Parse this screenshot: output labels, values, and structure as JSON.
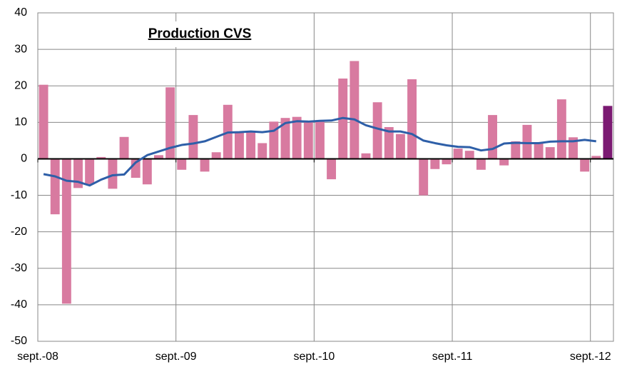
{
  "chart_data": {
    "type": "combo",
    "title": "Production CVS",
    "categories": [
      "sept.-08",
      null,
      null,
      null,
      null,
      null,
      null,
      null,
      null,
      null,
      null,
      null,
      "sept.-09",
      null,
      null,
      null,
      null,
      null,
      null,
      null,
      null,
      null,
      null,
      null,
      "sept.-10",
      null,
      null,
      null,
      null,
      null,
      null,
      null,
      null,
      null,
      null,
      null,
      "sept.-11",
      null,
      null,
      null,
      null,
      null,
      null,
      null,
      null,
      null,
      null,
      null,
      "sept.-12",
      null
    ],
    "series": [
      {
        "type": "bar",
        "color": "#d87aa0",
        "colors": [
          "#d87aa0",
          "#d87aa0",
          "#d87aa0",
          "#d87aa0",
          "#d87aa0",
          "#d87aa0",
          "#d87aa0",
          "#d87aa0",
          "#d87aa0",
          "#d87aa0",
          "#d87aa0",
          "#d87aa0",
          "#d87aa0",
          "#d87aa0",
          "#d87aa0",
          "#d87aa0",
          "#d87aa0",
          "#d87aa0",
          "#d87aa0",
          "#d87aa0",
          "#d87aa0",
          "#d87aa0",
          "#d87aa0",
          "#d87aa0",
          "#d87aa0",
          "#d87aa0",
          "#d87aa0",
          "#d87aa0",
          "#d87aa0",
          "#d87aa0",
          "#d87aa0",
          "#d87aa0",
          "#d87aa0",
          "#d87aa0",
          "#d87aa0",
          "#d87aa0",
          "#d87aa0",
          "#d87aa0",
          "#d87aa0",
          "#d87aa0",
          "#d87aa0",
          "#d87aa0",
          "#d87aa0",
          "#d87aa0",
          "#d87aa0",
          "#d87aa0",
          "#d87aa0",
          "#d87aa0",
          "#d87aa0",
          "#7b1a72"
        ],
        "values": [
          20.3,
          -15.2,
          -39.7,
          -8,
          -7,
          0.5,
          -8.2,
          6,
          -5.2,
          -7,
          1,
          19.6,
          -3,
          12,
          -3.5,
          1.8,
          14.8,
          7.2,
          7.3,
          4.3,
          10.2,
          11.2,
          11.5,
          10.3,
          10.2,
          -5.6,
          22,
          26.8,
          1.5,
          15.5,
          8.7,
          6.8,
          21.8,
          -10,
          -2.8,
          -1.5,
          2.8,
          2.2,
          -3,
          12,
          -1.8,
          4.8,
          9.3,
          4.5,
          3.2,
          16.3,
          5.9,
          -3.5,
          0.8,
          14.5
        ]
      },
      {
        "type": "line",
        "color": "#2e5fa8",
        "values": [
          -4.2,
          -4.8,
          -6,
          -6.3,
          -7.3,
          -5.7,
          -4.5,
          -4.3,
          -1,
          1,
          2,
          3,
          3.8,
          4.2,
          4.8,
          6,
          7.2,
          7.3,
          7.5,
          7.3,
          7.7,
          9.8,
          10.3,
          10.2,
          10.4,
          10.5,
          11.2,
          10.8,
          9.2,
          8.3,
          7.5,
          7.5,
          6.8,
          5,
          4.3,
          3.7,
          3.3,
          3.2,
          2.3,
          2.7,
          4.2,
          4.4,
          4.3,
          4.3,
          4.7,
          4.8,
          4.8,
          5.2,
          4.8,
          null
        ]
      }
    ],
    "ylim": [
      -50,
      40
    ],
    "yticks": [
      -50,
      -40,
      -30,
      -20,
      -10,
      0,
      10,
      20,
      30,
      40
    ],
    "grid": true
  }
}
